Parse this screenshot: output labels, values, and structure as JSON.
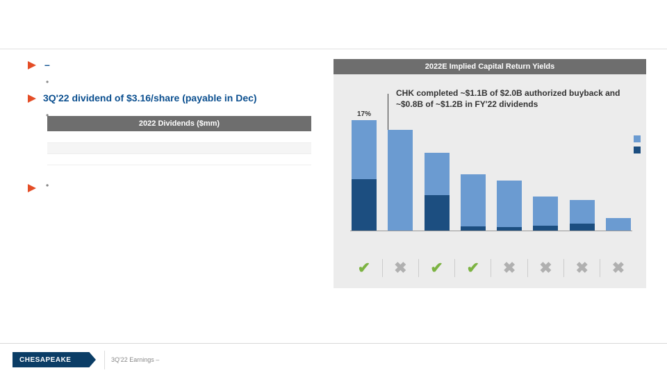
{
  "colors": {
    "dividend": "#6b9bd1",
    "buyback": "#1c4e80",
    "check": "#7cb342",
    "cross": "#b0b0b0",
    "header_bar": "#6e6e6e",
    "brand": "#0b3d66",
    "accent_blue": "#0b4f8f"
  },
  "left": {
    "bullet1_dash": "–",
    "bullet2": "3Q'22 dividend of $3.16/share (payable in Dec)",
    "table_header": "2022 Dividends ($mm)"
  },
  "chart": {
    "title": "2022E Implied Capital Return Yields",
    "annotation": "CHK completed ~$1.1B of $2.0B authorized buyback and ~$0.8B of ~$1.2B in FY'22 dividends",
    "y_max_pct": 17,
    "series": [
      {
        "label": "17%",
        "div_pct": 9.0,
        "bb_pct": 8.0,
        "status": "check"
      },
      {
        "label": "",
        "div_pct": 15.5,
        "bb_pct": 0,
        "status": "cross"
      },
      {
        "label": "",
        "div_pct": 6.5,
        "bb_pct": 5.5,
        "status": "check"
      },
      {
        "label": "",
        "div_pct": 8.0,
        "bb_pct": 0.7,
        "status": "check"
      },
      {
        "label": "",
        "div_pct": 7.2,
        "bb_pct": 0.6,
        "status": "cross"
      },
      {
        "label": "",
        "div_pct": 4.5,
        "bb_pct": 0.8,
        "status": "cross"
      },
      {
        "label": "",
        "div_pct": 3.6,
        "bb_pct": 1.2,
        "status": "cross"
      },
      {
        "label": "",
        "div_pct": 2.0,
        "bb_pct": 0,
        "status": "cross"
      }
    ],
    "legend": {
      "dividend": "",
      "buyback": ""
    }
  },
  "footer": {
    "brand": "CHESAPEAKE",
    "text": "3Q'22 Earnings –"
  }
}
